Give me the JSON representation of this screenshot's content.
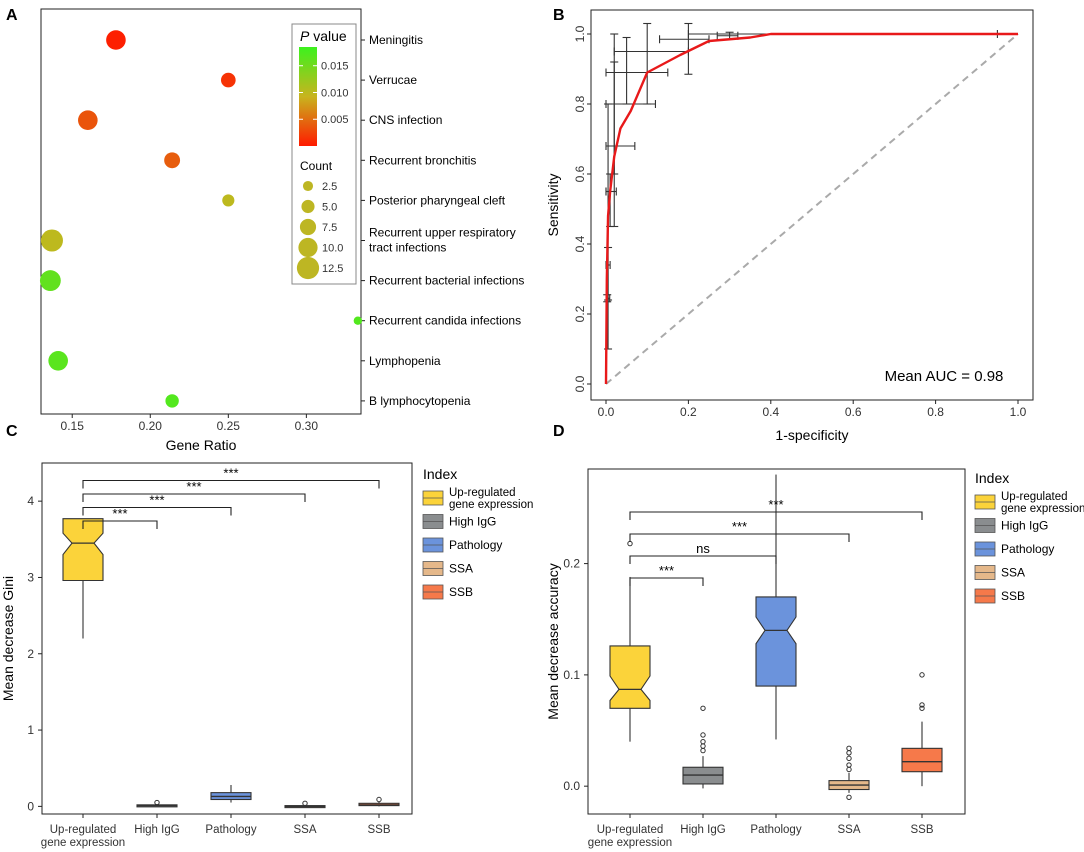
{
  "chart_data": [
    {
      "panel": "A",
      "type": "scatter",
      "xlabel": "Gene Ratio",
      "xticks": [
        0.15,
        0.2,
        0.25,
        0.3
      ],
      "xlim": [
        0.13,
        0.335
      ],
      "categories": [
        "Meningitis",
        "Verrucae",
        "CNS infection",
        "Recurrent bronchitis",
        "Posterior pharyngeal cleft",
        "Recurrent upper respiratory tract infections",
        "Recurrent bacterial infections",
        "Recurrent candida infections",
        "Lymphopenia",
        "B lymphocytopenia"
      ],
      "category_lines": [
        [
          "Meningitis"
        ],
        [
          "Verrucae"
        ],
        [
          "CNS infection"
        ],
        [
          "Recurrent bronchitis"
        ],
        [
          "Posterior pharyngeal cleft"
        ],
        [
          "Recurrent upper respiratory",
          "tract infections"
        ],
        [
          "Recurrent bacterial infections"
        ],
        [
          "Recurrent candida infections"
        ],
        [
          "Lymphopenia"
        ],
        [
          "B lymphocytopenia"
        ]
      ],
      "points": [
        {
          "category": "Meningitis",
          "gene_ratio": 0.178,
          "count": 10,
          "p_value": 0.0003
        },
        {
          "category": "Verrucae",
          "gene_ratio": 0.25,
          "count": 6,
          "p_value": 0.0015
        },
        {
          "category": "CNS infection",
          "gene_ratio": 0.16,
          "count": 10,
          "p_value": 0.0035
        },
        {
          "category": "Recurrent bronchitis",
          "gene_ratio": 0.214,
          "count": 7,
          "p_value": 0.004
        },
        {
          "category": "Posterior pharyngeal cleft",
          "gene_ratio": 0.25,
          "count": 4,
          "p_value": 0.01
        },
        {
          "category": "Recurrent upper respiratory tract infections",
          "gene_ratio": 0.137,
          "count": 12,
          "p_value": 0.01
        },
        {
          "category": "Recurrent bacterial infections",
          "gene_ratio": 0.136,
          "count": 11,
          "p_value": 0.016
        },
        {
          "category": "Recurrent candida infections",
          "gene_ratio": 0.333,
          "count": 1,
          "p_value": 0.017
        },
        {
          "category": "Lymphopenia",
          "gene_ratio": 0.141,
          "count": 10,
          "p_value": 0.0165
        },
        {
          "category": "B lymphocytopenia",
          "gene_ratio": 0.214,
          "count": 5,
          "p_value": 0.017
        }
      ],
      "legend_p_title": "P value",
      "legend_p_title_prefix": "P",
      "legend_p_title_suffix": " value",
      "p_value_ticks": [
        "0.015",
        "0.010",
        "0.005"
      ],
      "p_value_tick_values": [
        0.015,
        0.01,
        0.005
      ],
      "p_value_range": [
        0.0,
        0.0185
      ],
      "legend_count_title": "Count",
      "count_ticks": [
        "2.5",
        "5.0",
        "7.5",
        "10.0",
        "12.5"
      ],
      "count_tick_values": [
        2.5,
        5.0,
        7.5,
        10.0,
        12.5
      ],
      "colors": {
        "low_p": "#ff1a00",
        "mid_p": "#c8b41e",
        "high_p": "#3cf21e",
        "legend_size_fill": "#bdb623"
      }
    },
    {
      "panel": "B",
      "type": "line",
      "xlabel": "1-specificity",
      "ylabel": "Sensitivity",
      "xticks": [
        "0.0",
        "0.2",
        "0.4",
        "0.6",
        "0.8",
        "1.0"
      ],
      "yticks": [
        "0.0",
        "0.2",
        "0.4",
        "0.6",
        "0.8",
        "1.0"
      ],
      "xlim": [
        0,
        1
      ],
      "ylim": [
        0,
        1
      ],
      "annotation": "Mean AUC = 0.98",
      "roc_curve": {
        "x": [
          0,
          0.002,
          0.005,
          0.01,
          0.02,
          0.035,
          0.06,
          0.1,
          0.18,
          0.25,
          0.35,
          0.4,
          0.5,
          1.0
        ],
        "y": [
          0,
          0.3,
          0.48,
          0.55,
          0.65,
          0.73,
          0.78,
          0.89,
          0.94,
          0.98,
          0.99,
          1.0,
          1.0,
          1.0
        ]
      },
      "diagonal": {
        "x": [
          0,
          1
        ],
        "y": [
          0,
          1
        ]
      },
      "error_bars": [
        {
          "x": 0.003,
          "y": 0.245,
          "xerr": [
            0.001,
            0.006
          ],
          "yerr": [
            0.01,
            0.01
          ]
        },
        {
          "x": 0.005,
          "y": 0.34,
          "xerr": [
            0.005,
            0.005
          ],
          "yerr": [
            0.1,
            0.05
          ]
        },
        {
          "x": 0.005,
          "y": 0.55,
          "xerr": [
            0.005,
            0.005
          ],
          "yerr": [
            0.45,
            0.25
          ]
        },
        {
          "x": 0.01,
          "y": 0.55,
          "xerr": [
            0.01,
            0.015
          ],
          "yerr": [
            0.1,
            0.05
          ]
        },
        {
          "x": 0.02,
          "y": 0.68,
          "xerr": [
            0.02,
            0.05
          ],
          "yerr": [
            0.23,
            0.24
          ]
        },
        {
          "x": 0.02,
          "y": 0.8,
          "xerr": [
            0.02,
            0.1
          ],
          "yerr": [
            0.2,
            0.2
          ]
        },
        {
          "x": 0.05,
          "y": 0.89,
          "xerr": [
            0.05,
            0.1
          ],
          "yerr": [
            0.09,
            0.1
          ]
        },
        {
          "x": 0.1,
          "y": 0.95,
          "xerr": [
            0.08,
            0.1
          ],
          "yerr": [
            0.15,
            0.2
          ]
        },
        {
          "x": 0.2,
          "y": 0.985,
          "xerr": [
            0.07,
            0.05
          ],
          "yerr": [
            0.1,
            0.05
          ]
        },
        {
          "x": 0.3,
          "y": 0.995,
          "xerr": [
            0.03,
            0.02
          ],
          "yerr": [
            0.01,
            0.01
          ]
        },
        {
          "x": 0.6,
          "y": 1.0,
          "xerr": [
            0.4,
            0.35
          ],
          "yerr": [
            0,
            0
          ]
        }
      ],
      "colors": {
        "curve": "#e8191a",
        "diagonal": "#aaaaaa",
        "error": "#333333"
      }
    },
    {
      "panel": "C",
      "type": "box",
      "ylabel": "Mean decrease Gini",
      "yticks": [
        "0",
        "1",
        "2",
        "3",
        "4"
      ],
      "ylim": [
        -0.1,
        4.5
      ],
      "categories": [
        "Up-regulated\ngene expression",
        "High IgG",
        "Pathology",
        "SSA",
        "SSB"
      ],
      "category_lines": [
        [
          "Up-regulated",
          "gene expression"
        ],
        [
          "High IgG"
        ],
        [
          "Pathology"
        ],
        [
          "SSA"
        ],
        [
          "SSB"
        ]
      ],
      "boxes": [
        {
          "min": 2.2,
          "q1": 2.96,
          "median": 3.45,
          "q3": 3.77,
          "max": 3.77,
          "notch": [
            3.3,
            3.58
          ],
          "outliers": []
        },
        {
          "min": 0.0,
          "q1": 0.0,
          "median": 0.01,
          "q3": 0.02,
          "max": 0.03,
          "outliers": [
            0.05
          ]
        },
        {
          "min": 0.05,
          "q1": 0.09,
          "median": 0.13,
          "q3": 0.18,
          "max": 0.28,
          "outliers": []
        },
        {
          "min": -0.02,
          "q1": -0.01,
          "median": 0.0,
          "q3": 0.01,
          "max": 0.02,
          "outliers": [
            0.04
          ]
        },
        {
          "min": 0.0,
          "q1": 0.01,
          "median": 0.02,
          "q3": 0.04,
          "max": 0.06,
          "outliers": [
            0.09
          ]
        }
      ],
      "comparisons": [
        {
          "to": 1,
          "label": "***",
          "level": 0
        },
        {
          "to": 2,
          "label": "***",
          "level": 1
        },
        {
          "to": 3,
          "label": "***",
          "level": 2
        },
        {
          "to": 4,
          "label": "***",
          "level": 3
        }
      ],
      "legend_title": "Index",
      "legend_items": [
        [
          "Up-regulated",
          "gene expression"
        ],
        [
          "High IgG"
        ],
        [
          "Pathology"
        ],
        [
          "SSA"
        ],
        [
          "SSB"
        ]
      ],
      "colors": [
        "#fbd33a",
        "#8a8d8f",
        "#6b93dc",
        "#e5b88a",
        "#f6794a"
      ]
    },
    {
      "panel": "D",
      "type": "box",
      "ylabel": "Mean decrease accuracy",
      "yticks": [
        "0.0",
        "0.1",
        "0.2"
      ],
      "ytick_values": [
        0.0,
        0.1,
        0.2
      ],
      "ylim": [
        -0.025,
        0.285
      ],
      "categories": [
        "Up-regulated\ngene expression",
        "High IgG",
        "Pathology",
        "SSA",
        "SSB"
      ],
      "category_lines": [
        [
          "Up-regulated",
          "gene expression"
        ],
        [
          "High IgG"
        ],
        [
          "Pathology"
        ],
        [
          "SSA"
        ],
        [
          "SSB"
        ]
      ],
      "boxes": [
        {
          "min": 0.04,
          "q1": 0.07,
          "median": 0.087,
          "q3": 0.126,
          "max": 0.188,
          "notch": [
            0.077,
            0.099
          ],
          "outliers": [
            0.218
          ]
        },
        {
          "min": -0.002,
          "q1": 0.002,
          "median": 0.01,
          "q3": 0.017,
          "max": 0.027,
          "outliers": [
            0.032,
            0.036,
            0.04,
            0.046,
            0.07
          ]
        },
        {
          "min": 0.042,
          "q1": 0.09,
          "median": 0.14,
          "q3": 0.17,
          "max": 0.28,
          "notch": [
            0.128,
            0.152
          ],
          "outliers": []
        },
        {
          "min": -0.006,
          "q1": -0.003,
          "median": 0.001,
          "q3": 0.005,
          "max": 0.012,
          "outliers": [
            -0.01,
            0.015,
            0.019,
            0.025,
            0.03,
            0.034
          ]
        },
        {
          "min": 0.0,
          "q1": 0.013,
          "median": 0.022,
          "q3": 0.034,
          "max": 0.058,
          "outliers": [
            0.07,
            0.073,
            0.1
          ]
        }
      ],
      "comparisons": [
        {
          "to": 1,
          "label": "***",
          "level": 0
        },
        {
          "to": 2,
          "label": "ns",
          "level": 1
        },
        {
          "to": 3,
          "label": "***",
          "level": 2
        },
        {
          "to": 4,
          "label": "***",
          "level": 3
        }
      ],
      "legend_title": "Index",
      "legend_items": [
        [
          "Up-regulated",
          "gene expression"
        ],
        [
          "High IgG"
        ],
        [
          "Pathology"
        ],
        [
          "SSA"
        ],
        [
          "SSB"
        ]
      ],
      "colors": [
        "#fbd33a",
        "#8a8d8f",
        "#6b93dc",
        "#e5b88a",
        "#f6794a"
      ]
    }
  ],
  "panel_labels": [
    "A",
    "B",
    "C",
    "D"
  ]
}
